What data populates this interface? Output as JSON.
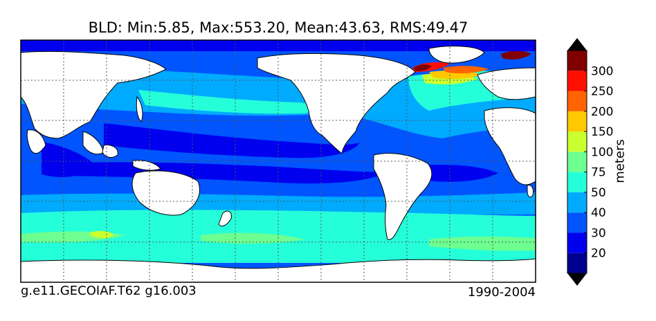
{
  "map": {
    "title": "BLD: Min:5.85, Max:553.20, Mean:43.63, RMS:49.47",
    "footer_left": "g.e11.GECOIAF.T62 g16.003",
    "footer_right": "1990-2004"
  },
  "colorbar": {
    "units_label": "meters",
    "levels": [
      "20",
      "30",
      "40",
      "50",
      "75",
      "100",
      "150",
      "200",
      "250",
      "300"
    ],
    "colors": [
      "#00008f",
      "#0000ee",
      "#0055ff",
      "#00aaff",
      "#25ffd9",
      "#6dff8f",
      "#caff30",
      "#ffc800",
      "#ff6400",
      "#ff0f00",
      "#800000"
    ],
    "extend": "both"
  },
  "colors": {
    "land": "#ffffff",
    "background_ocean": "#0055ff",
    "graticule": "#444444"
  }
}
